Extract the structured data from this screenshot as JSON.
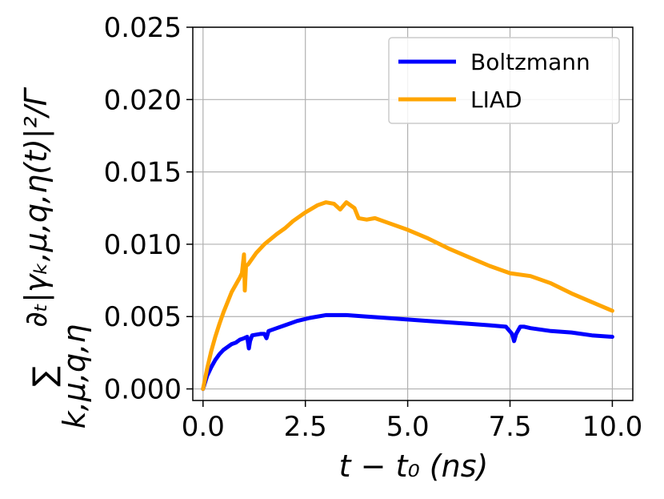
{
  "chart_data": {
    "type": "line",
    "xlabel": "t − t₀ (ns)",
    "ylabel": {
      "sum": "∑",
      "subscript": "k,μ,q,η",
      "expression": "∂ₜ|γₖ,μ,q,η(t)|²/Γ"
    },
    "xlim": [
      -0.25,
      10.5
    ],
    "ylim": [
      -0.0008,
      0.025
    ],
    "xticks": [
      0.0,
      2.5,
      5.0,
      7.5,
      10.0
    ],
    "xtick_labels": [
      "0.0",
      "2.5",
      "5.0",
      "7.5",
      "10.0"
    ],
    "yticks": [
      0.0,
      0.005,
      0.01,
      0.015,
      0.02,
      0.025
    ],
    "ytick_labels": [
      "0.000",
      "0.005",
      "0.010",
      "0.015",
      "0.020",
      "0.025"
    ],
    "grid": true,
    "legend_position": "top-right",
    "series": [
      {
        "name": "Boltzmann",
        "color": "#0000ff",
        "x": [
          0.0,
          0.1,
          0.2,
          0.3,
          0.4,
          0.5,
          0.6,
          0.7,
          0.8,
          0.9,
          1.0,
          1.08,
          1.12,
          1.15,
          1.2,
          1.4,
          1.5,
          1.55,
          1.6,
          1.8,
          2.0,
          2.3,
          2.6,
          3.0,
          3.5,
          4.0,
          4.5,
          5.0,
          5.5,
          6.0,
          6.5,
          7.0,
          7.4,
          7.55,
          7.6,
          7.65,
          7.75,
          7.85,
          8.0,
          8.5,
          9.0,
          9.5,
          10.0
        ],
        "y": [
          0.0,
          0.0009,
          0.0015,
          0.002,
          0.0024,
          0.0027,
          0.0029,
          0.0031,
          0.0032,
          0.0034,
          0.0035,
          0.0036,
          0.0028,
          0.0033,
          0.0037,
          0.0038,
          0.0038,
          0.0035,
          0.004,
          0.0042,
          0.0044,
          0.0047,
          0.0049,
          0.0051,
          0.0051,
          0.005,
          0.0049,
          0.0048,
          0.0047,
          0.0046,
          0.0045,
          0.0044,
          0.0043,
          0.0038,
          0.0033,
          0.0038,
          0.0043,
          0.0043,
          0.0042,
          0.004,
          0.0039,
          0.0037,
          0.0036
        ]
      },
      {
        "name": "LIAD",
        "color": "#ffa500",
        "x": [
          0.0,
          0.1,
          0.2,
          0.3,
          0.4,
          0.5,
          0.6,
          0.7,
          0.8,
          0.9,
          0.95,
          1.0,
          1.02,
          1.05,
          1.1,
          1.3,
          1.5,
          1.8,
          2.0,
          2.2,
          2.5,
          2.8,
          3.0,
          3.2,
          3.35,
          3.5,
          3.7,
          3.8,
          4.0,
          4.2,
          4.5,
          5.0,
          5.5,
          6.0,
          6.5,
          7.0,
          7.5,
          8.0,
          8.5,
          9.0,
          9.5,
          10.0
        ],
        "y": [
          0.0,
          0.0014,
          0.0026,
          0.0036,
          0.0045,
          0.0053,
          0.006,
          0.0067,
          0.0072,
          0.0077,
          0.008,
          0.0093,
          0.0068,
          0.0085,
          0.0086,
          0.0094,
          0.01,
          0.0107,
          0.0111,
          0.0116,
          0.0122,
          0.0127,
          0.0129,
          0.0128,
          0.0124,
          0.0129,
          0.0125,
          0.0118,
          0.0117,
          0.0118,
          0.0115,
          0.011,
          0.0104,
          0.0097,
          0.0091,
          0.0085,
          0.008,
          0.0078,
          0.0073,
          0.0066,
          0.006,
          0.0054
        ]
      }
    ]
  }
}
